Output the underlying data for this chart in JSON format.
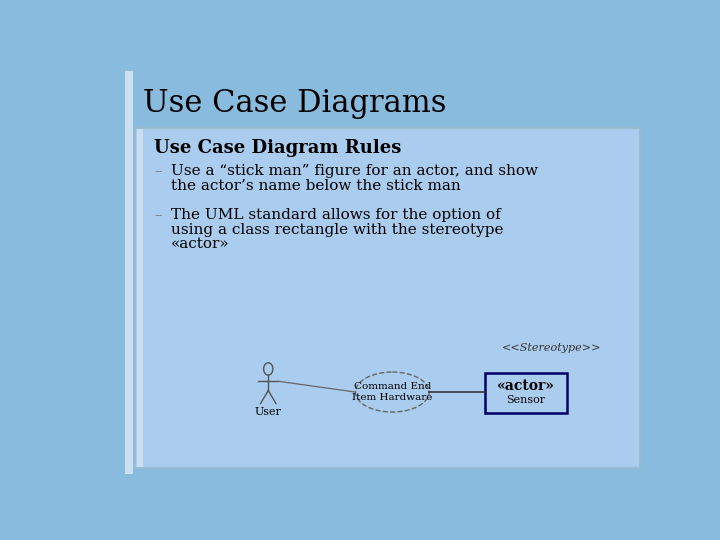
{
  "bg_color": "#88bbdd",
  "content_box_color": "#aaccee",
  "title": "Use Case Diagrams",
  "title_fontsize": 22,
  "title_color": "#000000",
  "subtitle": "Use Case Diagram Rules",
  "subtitle_fontsize": 13,
  "bullet1_line1": "Use a “stick man” figure for an actor, and show",
  "bullet1_line2": "the actor’s name below the stick man",
  "bullet2_line1": "The UML standard allows for the option of",
  "bullet2_line2": "using a class rectangle with the stereotype",
  "bullet2_line3": "«actor»",
  "bullet_fontsize": 11,
  "stereotype_label": "<<Stereotype>>",
  "ellipse_label1": "Command End",
  "ellipse_label2": "Item Hardware",
  "actor_box_label1": "«actor»",
  "actor_box_label2": "Sensor",
  "user_label": "User",
  "diagram_fontsize": 8,
  "left_bar_color": "#ccdff0",
  "actor_box_edge": "#000066"
}
